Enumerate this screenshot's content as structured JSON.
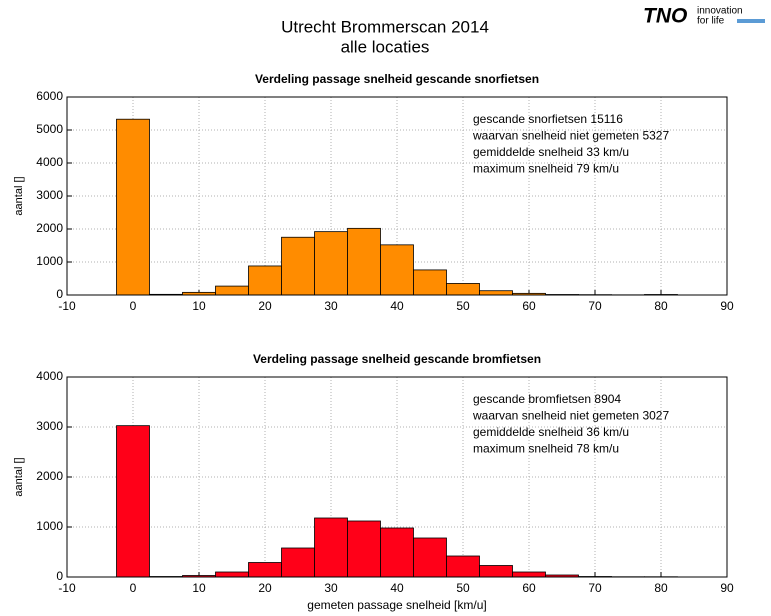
{
  "header": {
    "title": "Utrecht Brommerscan 2014",
    "subtitle": "alle locaties",
    "logo": "TNO",
    "tagline": [
      "innovation",
      "for life"
    ]
  },
  "chart_data": [
    {
      "type": "histogram",
      "title": "Verdeling passage snelheid gescande snorfietsen",
      "ylabel": "aantal []",
      "bins": [
        -2.5,
        2.5,
        7.5,
        12.5,
        17.5,
        22.5,
        27.5,
        32.5,
        37.5,
        42.5,
        47.5,
        52.5,
        57.5,
        62.5,
        67.5,
        72.5,
        77.5,
        82.5
      ],
      "values": [
        5327,
        20,
        80,
        270,
        880,
        1750,
        1920,
        2020,
        1520,
        760,
        350,
        130,
        50,
        15,
        10,
        5,
        15
      ],
      "color": "#ff8c00",
      "xlim": [
        -10,
        90
      ],
      "xticks": [
        -10,
        0,
        10,
        20,
        30,
        40,
        50,
        60,
        70,
        80,
        90
      ],
      "ylim": [
        0,
        6000
      ],
      "yticks": [
        0,
        1000,
        2000,
        3000,
        4000,
        5000,
        6000
      ],
      "grid": true,
      "annotations": [
        "gescande snorfietsen 15116",
        "waarvan snelheid niet gemeten 5327",
        "gemiddelde snelheid 33 km/u",
        "maximum snelheid 79 km/u"
      ]
    },
    {
      "type": "histogram",
      "title": "Verdeling passage snelheid gescande bromfietsen",
      "ylabel": "aantal []",
      "xlabel": "gemeten passage snelheid [km/u]",
      "bins": [
        -2.5,
        2.5,
        7.5,
        12.5,
        17.5,
        22.5,
        27.5,
        32.5,
        37.5,
        42.5,
        47.5,
        52.5,
        57.5,
        62.5,
        67.5,
        72.5,
        77.5,
        82.5
      ],
      "values": [
        3027,
        10,
        30,
        100,
        290,
        580,
        1180,
        1120,
        980,
        780,
        420,
        230,
        100,
        40,
        10,
        5,
        5
      ],
      "color": "#ff0018",
      "xlim": [
        -10,
        90
      ],
      "xticks": [
        -10,
        0,
        10,
        20,
        30,
        40,
        50,
        60,
        70,
        80,
        90
      ],
      "ylim": [
        0,
        4000
      ],
      "yticks": [
        0,
        1000,
        2000,
        3000,
        4000
      ],
      "grid": true,
      "annotations": [
        "gescande bromfietsen 8904",
        "waarvan snelheid niet gemeten 3027",
        "gemiddelde snelheid 36 km/u",
        "maximum snelheid 78 km/u"
      ]
    }
  ]
}
